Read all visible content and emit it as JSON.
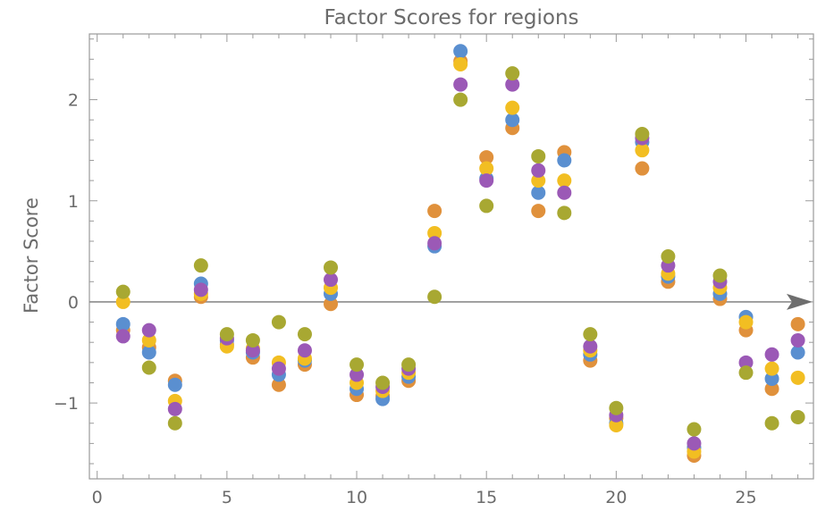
{
  "chart_data": {
    "type": "scatter",
    "title": "Factor Scores for regions",
    "xlabel": "",
    "ylabel": "Factor Score",
    "xlim": [
      -0.3,
      27.6
    ],
    "ylim": [
      -1.75,
      2.65
    ],
    "x_ticks": [
      0,
      5,
      10,
      15,
      20,
      25
    ],
    "y_ticks": [
      -1,
      0,
      1,
      2
    ],
    "y_tick_labels": [
      "−1",
      "0",
      "1",
      "2"
    ],
    "grid": false,
    "legend": "none",
    "zero_line_arrow": true,
    "colors": {
      "zero_line": "#8c8c8c",
      "frame": "#9a9a9a",
      "text": "#6b6b6b"
    },
    "series": [
      {
        "color": "#E0913C",
        "x": [
          1,
          2,
          3,
          4,
          5,
          6,
          7,
          8,
          9,
          10,
          11,
          12,
          13,
          14,
          15,
          16,
          17,
          18,
          19,
          20,
          21,
          22,
          23,
          24,
          25,
          26,
          27
        ],
        "y": [
          -0.28,
          -0.45,
          -0.78,
          0.05,
          -0.42,
          -0.55,
          -0.82,
          -0.62,
          -0.02,
          -0.92,
          -0.93,
          -0.78,
          0.9,
          2.38,
          1.43,
          1.72,
          0.9,
          1.48,
          -0.58,
          -1.15,
          1.32,
          0.2,
          -1.52,
          0.03,
          -0.28,
          -0.86,
          -0.22
        ]
      },
      {
        "color": "#5A8FD0",
        "x": [
          1,
          2,
          3,
          4,
          5,
          6,
          7,
          8,
          9,
          10,
          11,
          12,
          13,
          14,
          15,
          16,
          17,
          18,
          19,
          20,
          21,
          22,
          23,
          24,
          25,
          26,
          27
        ],
        "y": [
          -0.22,
          -0.5,
          -0.82,
          0.18,
          -0.38,
          -0.5,
          -0.72,
          -0.58,
          0.08,
          -0.86,
          -0.96,
          -0.74,
          0.55,
          2.48,
          1.22,
          1.8,
          1.08,
          1.4,
          -0.52,
          -1.2,
          1.58,
          0.25,
          -1.44,
          0.08,
          -0.15,
          -0.76,
          -0.5
        ]
      },
      {
        "color": "#F2BE22",
        "x": [
          1,
          2,
          3,
          4,
          5,
          6,
          7,
          8,
          9,
          10,
          11,
          12,
          13,
          14,
          15,
          16,
          17,
          18,
          19,
          20,
          21,
          22,
          23,
          24,
          25,
          26,
          27
        ],
        "y": [
          0.0,
          -0.38,
          -0.98,
          0.08,
          -0.44,
          -0.46,
          -0.6,
          -0.56,
          0.14,
          -0.8,
          -0.88,
          -0.7,
          0.68,
          2.35,
          1.32,
          1.92,
          1.2,
          1.2,
          -0.48,
          -1.22,
          1.5,
          0.28,
          -1.48,
          0.14,
          -0.2,
          -0.66,
          -0.75
        ]
      },
      {
        "color": "#9B59B6",
        "x": [
          1,
          2,
          3,
          4,
          5,
          6,
          7,
          8,
          9,
          10,
          11,
          12,
          13,
          14,
          15,
          16,
          17,
          18,
          19,
          20,
          21,
          22,
          23,
          24,
          25,
          26,
          27
        ],
        "y": [
          -0.34,
          -0.28,
          -1.06,
          0.12,
          -0.36,
          -0.48,
          -0.66,
          -0.48,
          0.22,
          -0.72,
          -0.84,
          -0.66,
          0.58,
          2.15,
          1.2,
          2.15,
          1.3,
          1.08,
          -0.44,
          -1.12,
          1.62,
          0.36,
          -1.4,
          0.2,
          -0.6,
          -0.52,
          -0.38
        ]
      },
      {
        "color": "#A8A832",
        "x": [
          1,
          2,
          3,
          4,
          5,
          6,
          7,
          8,
          9,
          10,
          11,
          12,
          13,
          14,
          15,
          16,
          17,
          18,
          19,
          20,
          21,
          22,
          23,
          24,
          25,
          26,
          27
        ],
        "y": [
          0.1,
          -0.65,
          -1.2,
          0.36,
          -0.32,
          -0.38,
          -0.2,
          -0.32,
          0.34,
          -0.62,
          -0.8,
          -0.62,
          0.05,
          2.0,
          0.95,
          2.26,
          1.44,
          0.88,
          -0.32,
          -1.05,
          1.66,
          0.45,
          -1.26,
          0.26,
          -0.7,
          -1.2,
          -1.14
        ]
      }
    ]
  }
}
